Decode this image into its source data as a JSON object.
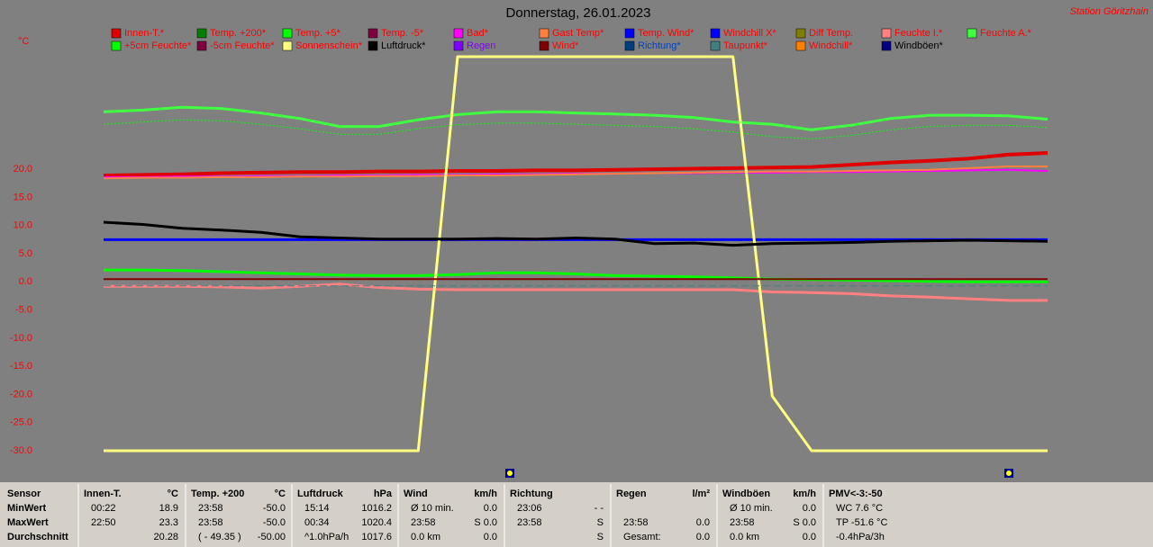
{
  "chart_data": {
    "type": "line",
    "title": "Donnerstag, 26.01.2023",
    "station": "Station Göritzhain",
    "y_unit": "°C",
    "categories": [
      null,
      null,
      null,
      null,
      null,
      null,
      null,
      null,
      null,
      null,
      null,
      null,
      null,
      null,
      null,
      null,
      null,
      null,
      null,
      null,
      null,
      null,
      null,
      null,
      null
    ],
    "ylim": [
      -30,
      40
    ],
    "yticks": [
      {
        "value": 20,
        "label": "20.0"
      },
      {
        "value": 15,
        "label": "15.0"
      },
      {
        "value": 10,
        "label": "10.0"
      },
      {
        "value": 5,
        "label": "5.0"
      },
      {
        "value": 0,
        "label": "0.0"
      },
      {
        "value": -5,
        "label": "-5.0"
      },
      {
        "value": -10,
        "label": "-10.0"
      },
      {
        "value": -15,
        "label": "-15.0"
      },
      {
        "value": -20,
        "label": "-20.0"
      },
      {
        "value": -25,
        "label": "-25.0"
      },
      {
        "value": -30,
        "label": "-30.0"
      }
    ],
    "series": [
      {
        "name": "Innen-T.*",
        "color": "#e00000",
        "label_color": "#ff0000",
        "width": 4,
        "values": [
          18.9,
          19.0,
          19.1,
          19.3,
          19.4,
          19.5,
          19.5,
          19.6,
          19.6,
          19.7,
          19.7,
          19.8,
          19.8,
          19.9,
          20.0,
          20.1,
          20.2,
          20.3,
          20.4,
          20.8,
          21.2,
          21.5,
          21.9,
          22.6,
          22.9
        ]
      },
      {
        "name": "Temp. +200*",
        "color": "#008000",
        "label_color": "#ff0000"
      },
      {
        "name": "Temp. +5*",
        "color": "#00ff00",
        "label_color": "#ff0000",
        "width": 3,
        "values": [
          2.1,
          2.1,
          2.0,
          1.8,
          1.6,
          1.4,
          1.2,
          1.1,
          1.1,
          1.3,
          1.6,
          1.6,
          1.4,
          1.1,
          1.0,
          0.9,
          0.7,
          0.5,
          0.4,
          0.3,
          0.2,
          0.1,
          0.0,
          0.0,
          0.0
        ]
      },
      {
        "name": "Temp. -5*",
        "color": "#800040",
        "label_color": "#ff0000"
      },
      {
        "name": "Bad*",
        "color": "#ff00ff",
        "label_color": "#ff0000",
        "width": 2,
        "values": [
          18.6,
          18.6,
          18.7,
          18.7,
          18.8,
          18.8,
          18.9,
          18.9,
          19.0,
          19.0,
          19.1,
          19.1,
          19.2,
          19.2,
          19.3,
          19.3,
          19.4,
          19.4,
          19.5,
          19.5,
          19.6,
          19.7,
          19.8,
          19.9,
          19.7
        ]
      },
      {
        "name": "Gast Temp*",
        "color": "#ff8040",
        "label_color": "#ff0000",
        "width": 2,
        "values": [
          18.4,
          18.5,
          18.5,
          18.6,
          18.6,
          18.7,
          18.7,
          18.8,
          18.8,
          18.9,
          18.9,
          19.0,
          19.1,
          19.2,
          19.3,
          19.4,
          19.5,
          19.6,
          19.6,
          19.7,
          19.8,
          19.9,
          20.2,
          20.5,
          20.5
        ]
      },
      {
        "name": "Temp. Wind*",
        "color": "#0000ff",
        "label_color": "#ff0000",
        "width": 3,
        "values": [
          7.5,
          7.5,
          7.5,
          7.5,
          7.5,
          7.5,
          7.5,
          7.5,
          7.5,
          7.5,
          7.5,
          7.5,
          7.5,
          7.5,
          7.5,
          7.5,
          7.5,
          7.5,
          7.5,
          7.5,
          7.5,
          7.5,
          7.5,
          7.5,
          7.5
        ]
      },
      {
        "name": "Windchill X*",
        "color": "#0000ff",
        "label_color": "#ff0000"
      },
      {
        "name": "Diff Temp.",
        "color": "#808000",
        "label_color": "#ff0000"
      },
      {
        "name": "Feuchte I.*",
        "color": "#ff8080",
        "label_color": "#ff0000",
        "width": 3,
        "values": [
          -0.8,
          -0.8,
          -0.8,
          -0.9,
          -1.1,
          -0.8,
          -0.4,
          -1.0,
          -1.3,
          -1.4,
          -1.4,
          -1.4,
          -1.4,
          -1.4,
          -1.4,
          -1.4,
          -1.4,
          -1.8,
          -1.9,
          -2.1,
          -2.5,
          -2.7,
          -3.0,
          -3.3,
          -3.3
        ]
      },
      {
        "name": "Feuchte A.*",
        "color": "#40ff40",
        "label_color": "#ff0000",
        "width": 3,
        "values": [
          30.2,
          30.5,
          31.0,
          30.8,
          30.0,
          29.0,
          27.6,
          27.6,
          28.8,
          29.7,
          30.2,
          30.2,
          30.0,
          29.8,
          29.6,
          29.2,
          28.4,
          28.0,
          27.0,
          27.8,
          29.0,
          29.6,
          29.6,
          29.5,
          28.9
        ]
      },
      {
        "name": "+5cm Feuchte*",
        "color": "#00ff00",
        "label_color": "#ff0000",
        "width": 1,
        "style": "dotted",
        "values": [
          28.0,
          28.4,
          28.8,
          28.6,
          28.0,
          27.2,
          26.2,
          26.2,
          27.2,
          27.9,
          28.2,
          28.2,
          28.0,
          27.8,
          27.6,
          27.2,
          26.6,
          25.8,
          25.4,
          26.0,
          27.0,
          27.6,
          27.8,
          27.8,
          27.4
        ]
      },
      {
        "name": "-5cm Feuchte*",
        "color": "#800040",
        "label_color": "#ff0000"
      },
      {
        "name": "Sonnenschein*",
        "color": "#ffff80",
        "label_color": "#ff0000",
        "width": 3,
        "values": [
          -30,
          -30,
          -30,
          -30,
          -30,
          -30,
          -30,
          -30,
          -30,
          40,
          40,
          40,
          40,
          40,
          40,
          40,
          40,
          -20.3,
          -30,
          -30,
          -30,
          -30,
          -30,
          -30,
          -30
        ]
      },
      {
        "name": "Luftdruck*",
        "color": "#000000",
        "label_color": "#000000",
        "width": 3,
        "values": [
          10.6,
          10.2,
          9.5,
          9.2,
          8.8,
          8.0,
          7.8,
          7.6,
          7.6,
          7.6,
          7.7,
          7.6,
          7.8,
          7.6,
          6.8,
          6.9,
          6.5,
          6.8,
          6.9,
          7.0,
          7.2,
          7.3,
          7.4,
          7.3,
          7.2
        ]
      },
      {
        "name": "Regen",
        "color": "#8000ff",
        "label_color": "#8000ff"
      },
      {
        "name": "Wind*",
        "color": "#800000",
        "label_color": "#ff0000",
        "width": 2,
        "values": [
          0.5,
          0.5,
          0.5,
          0.5,
          0.5,
          0.5,
          0.5,
          0.5,
          0.5,
          0.5,
          0.5,
          0.5,
          0.5,
          0.5,
          0.5,
          0.5,
          0.5,
          0.5,
          0.5,
          0.5,
          0.5,
          0.5,
          0.5,
          0.5,
          0.5
        ]
      },
      {
        "name": "Richtung*",
        "color": "#004080",
        "label_color": "#0040c0"
      },
      {
        "name": "Taupunkt*",
        "color": "#408080",
        "label_color": "#ff0000",
        "width": 1,
        "style": "dashed",
        "values": [
          -0.7,
          -0.7,
          -0.7,
          -0.7,
          -0.7,
          -0.7,
          -0.7,
          -0.7,
          -0.7,
          -0.7,
          -0.7,
          -0.7,
          -0.7,
          -0.7,
          -0.7,
          -0.7,
          -0.7,
          -0.7,
          -0.7,
          -0.7,
          -0.7,
          -0.7,
          -0.7,
          -0.7,
          -0.7
        ]
      },
      {
        "name": "Windchill*",
        "color": "#ff8000",
        "label_color": "#ff0000"
      },
      {
        "name": "Windböen*",
        "color": "#000080",
        "label_color": "#000000"
      }
    ]
  },
  "stats_table": {
    "columns": [
      {
        "header": "Sensor",
        "rows": [
          {
            "left": "MinWert"
          },
          {
            "left": "MaxWert"
          },
          {
            "left": "Durchschnitt"
          }
        ]
      },
      {
        "header": "Innen-T.",
        "unit": "°C",
        "rows": [
          {
            "left": "00:22",
            "right": "18.9"
          },
          {
            "left": "22:50",
            "right": "23.3"
          },
          {
            "right": "20.28"
          }
        ]
      },
      {
        "header": "Temp. +200",
        "unit": "°C",
        "rows": [
          {
            "left": "23:58",
            "right": "-50.0"
          },
          {
            "left": "23:58",
            "right": "-50.0"
          },
          {
            "left": "( - 49.35 )",
            "right": "-50.00"
          }
        ]
      },
      {
        "header": "Luftdruck",
        "unit": "hPa",
        "rows": [
          {
            "left": "15:14",
            "right": "1016.2"
          },
          {
            "left": "00:34",
            "right": "1020.4"
          },
          {
            "left": "^1.0hPa/h",
            "right": "1017.6"
          }
        ]
      },
      {
        "header": "Wind",
        "unit": "km/h",
        "rows": [
          {
            "left": "Ø 10 min.",
            "right": "0.0"
          },
          {
            "left": "23:58",
            "right": "S 0.0"
          },
          {
            "left": "0.0 km",
            "right": "0.0"
          }
        ]
      },
      {
        "header": "Richtung",
        "rows": [
          {
            "left": "23:06",
            "right": "- -"
          },
          {
            "left": "23:58",
            "right": "S"
          },
          {
            "right": "S"
          }
        ]
      },
      {
        "header": "Regen",
        "unit": "l/m²",
        "rows": [
          {},
          {
            "left": "23:58",
            "right": "0.0"
          },
          {
            "left": "Gesamt:",
            "right": "0.0"
          }
        ]
      },
      {
        "header": "Windböen",
        "unit": "km/h",
        "rows": [
          {
            "left": "Ø 10 min.",
            "right": "0.0"
          },
          {
            "left": "23:58",
            "right": "S 0.0"
          },
          {
            "left": "0.0 km",
            "right": "0.0"
          }
        ]
      },
      {
        "header": "PMV<-3:-50",
        "rows": [
          {
            "left": "WC 7.6 °C"
          },
          {
            "left": "TP -51.6 °C"
          },
          {
            "left": "-0.4hPa/3h"
          }
        ]
      }
    ]
  }
}
